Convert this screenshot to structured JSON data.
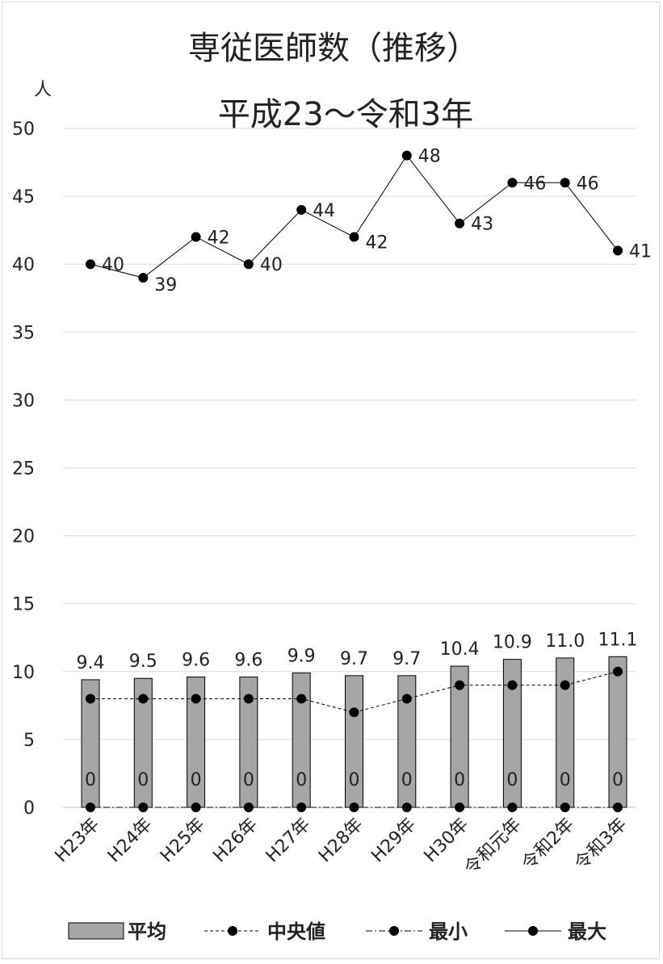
{
  "chart_data": {
    "type": "bar",
    "title": "専従医師数（推移）",
    "subtitle": "平成23〜令和3年",
    "ylabel": "人",
    "ylim": [
      0,
      50
    ],
    "yticks": [
      0,
      5,
      10,
      15,
      20,
      25,
      30,
      35,
      40,
      45,
      50
    ],
    "categories": [
      "H23年",
      "H24年",
      "H25年",
      "H26年",
      "H27年",
      "H28年",
      "H29年",
      "H30年",
      "令和元年",
      "令和2年",
      "令和3年"
    ],
    "series": [
      {
        "name": "平均",
        "kind": "bar",
        "values": [
          9.4,
          9.5,
          9.6,
          9.6,
          9.9,
          9.7,
          9.7,
          10.4,
          10.9,
          11.0,
          11.1
        ],
        "labels": [
          "9.4",
          "9.5",
          "9.6",
          "9.6",
          "9.9",
          "9.7",
          "9.7",
          "10.4",
          "10.9",
          "11.0",
          "11.1"
        ]
      },
      {
        "name": "中央値",
        "kind": "line-dashed",
        "values": [
          8,
          8,
          8,
          8,
          8,
          7,
          8,
          9,
          9,
          9,
          10
        ]
      },
      {
        "name": "最小",
        "kind": "line-dashdot",
        "values": [
          0,
          0,
          0,
          0,
          0,
          0,
          0,
          0,
          0,
          0,
          0
        ],
        "labels": [
          "0",
          "0",
          "0",
          "0",
          "0",
          "0",
          "0",
          "0",
          "0",
          "0",
          "0"
        ]
      },
      {
        "name": "最大",
        "kind": "line-solid",
        "values": [
          40,
          39,
          42,
          40,
          44,
          42,
          48,
          43,
          46,
          46,
          41
        ],
        "labels": [
          "40",
          "39",
          "42",
          "40",
          "44",
          "42",
          "48",
          "43",
          "46",
          "46",
          "41"
        ]
      }
    ],
    "grid": true,
    "legend": "bottom",
    "colors": {
      "bar_fill": "#a6a6a6",
      "bar_stroke": "#000000",
      "line": "#000000",
      "grid": "#d9d9d9"
    }
  }
}
